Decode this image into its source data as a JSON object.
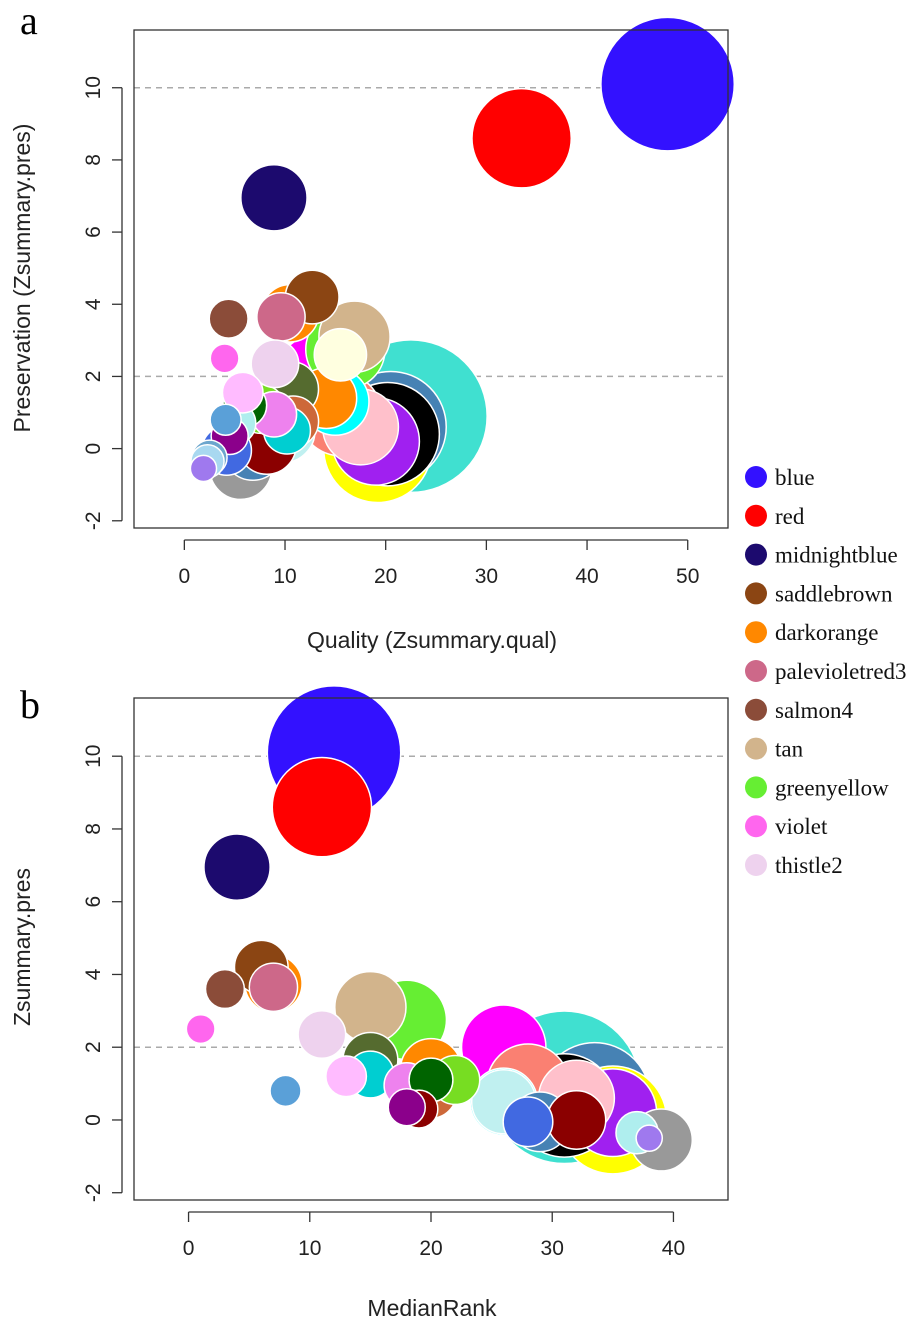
{
  "chart_data": [
    {
      "panel": "a",
      "type": "scatter",
      "xlabel": "Quality (Zsummary.qual)",
      "ylabel": "Preservation (Zsummary.pres)",
      "xticks": [
        0,
        10,
        20,
        30,
        40,
        50
      ],
      "yticks": [
        -2,
        0,
        2,
        4,
        6,
        8,
        10
      ],
      "xlim": [
        -5,
        54
      ],
      "ylim": [
        -2.2,
        11.6
      ],
      "reference_lines": [
        2,
        10
      ],
      "points": [
        {
          "module": "turquoise",
          "color": "#40E0D0",
          "x": 22.5,
          "y": 0.9,
          "size": 1700
        },
        {
          "module": "blue",
          "color": "#3311ff",
          "x": 48,
          "y": 10.1,
          "size": 1300
        },
        {
          "module": "brown",
          "color": "#4682B4",
          "x": 20.5,
          "y": 0.6,
          "size": 900
        },
        {
          "module": "yellow",
          "color": "#FFFF00",
          "x": 19.2,
          "y": 0.0,
          "size": 850
        },
        {
          "module": "black",
          "color": "#000000",
          "x": 20.2,
          "y": 0.4,
          "size": 780
        },
        {
          "module": "red",
          "color": "#ff0000",
          "x": 33.5,
          "y": 8.6,
          "size": 720
        },
        {
          "module": "purple",
          "color": "#A020F0",
          "x": 19.0,
          "y": 0.2,
          "size": 560
        },
        {
          "module": "magenta",
          "color": "#FF00FF",
          "x": 13.3,
          "y": 2.0,
          "size": 520
        },
        {
          "module": "salmon",
          "color": "#FA8072",
          "x": 15.5,
          "y": 0.95,
          "size": 500
        },
        {
          "module": "greenyellow",
          "color": "#66EE33",
          "x": 16.0,
          "y": 2.75,
          "size": 460
        },
        {
          "module": "pink",
          "color": "#FFC0CB",
          "x": 17.5,
          "y": 0.6,
          "size": 420
        },
        {
          "module": "tan",
          "color": "#D2B48C",
          "x": 16.9,
          "y": 3.1,
          "size": 370
        },
        {
          "module": "cyan",
          "color": "#00FFFF",
          "x": 15.0,
          "y": 1.3,
          "size": 330
        },
        {
          "module": "midnightblue",
          "color": "#1c0a6e",
          "x": 8.9,
          "y": 6.95,
          "size": 320
        },
        {
          "module": "lightcyan",
          "color": "#C0F0F0",
          "x": 9.8,
          "y": 0.5,
          "size": 300
        },
        {
          "module": "grey60",
          "color": "#999999",
          "x": 5.6,
          "y": -0.55,
          "size": 280
        },
        {
          "module": "darkorange",
          "color": "#FF8800",
          "x": 14.1,
          "y": 1.4,
          "size": 270
        },
        {
          "module": "steelblue",
          "color": "#4682B4",
          "x": 6.8,
          "y": -0.05,
          "size": 260
        },
        {
          "module": "darkred",
          "color": "#8B0000",
          "x": 8.2,
          "y": 0.1,
          "size": 250
        },
        {
          "module": "darkorange",
          "color": "#FF8800",
          "x": 10.5,
          "y": 3.75,
          "size": 240
        },
        {
          "module": "darkolivegreen",
          "color": "#556B2F",
          "x": 10.6,
          "y": 1.65,
          "size": 220
        },
        {
          "module": "saddlebrown",
          "color": "#8B4513",
          "x": 12.7,
          "y": 4.2,
          "size": 210
        },
        {
          "module": "lightyellow",
          "color": "#FFFFE0",
          "x": 15.5,
          "y": 2.6,
          "size": 200
        },
        {
          "module": "sienna3",
          "color": "#CD6839",
          "x": 10.8,
          "y": 0.75,
          "size": 190
        },
        {
          "module": "royalblue",
          "color": "#4169E1",
          "x": 4.2,
          "y": -0.05,
          "size": 180
        },
        {
          "module": "greenyellow",
          "color": "#77DD22",
          "x": 7.6,
          "y": 1.1,
          "size": 175
        },
        {
          "module": "palevioletred3",
          "color": "#CD6889",
          "x": 9.6,
          "y": 3.65,
          "size": 170
        },
        {
          "module": "thistle2",
          "color": "#EED2EE",
          "x": 9.0,
          "y": 2.35,
          "size": 165
        },
        {
          "module": "darkturquoise",
          "color": "#00CED1",
          "x": 10.2,
          "y": 0.5,
          "size": 160
        },
        {
          "module": "violet",
          "color": "#EE82EE",
          "x": 8.9,
          "y": 0.95,
          "size": 150
        },
        {
          "module": "darkgreen",
          "color": "#006400",
          "x": 6.0,
          "y": 1.2,
          "size": 140
        },
        {
          "module": "paleturquoise",
          "color": "#AFEEEE",
          "x": 5.0,
          "y": 0.7,
          "size": 130
        },
        {
          "module": "plum1",
          "color": "#FFBBFF",
          "x": 5.8,
          "y": 1.55,
          "size": 120
        },
        {
          "module": "salmon4",
          "color": "#8B4C39",
          "x": 4.4,
          "y": 3.6,
          "size": 110
        },
        {
          "module": "darkmagenta",
          "color": "#8B008B",
          "x": 4.5,
          "y": 0.35,
          "size": 100
        },
        {
          "module": "skyblue3",
          "color": "#6CA6CD",
          "x": 2.5,
          "y": -0.25,
          "size": 90
        },
        {
          "module": "lightsteelblue1",
          "color": "#A8D8F0",
          "x": 2.3,
          "y": -0.35,
          "size": 80
        },
        {
          "module": "skyblue",
          "color": "#5AA0D8",
          "x": 4.1,
          "y": 0.8,
          "size": 70
        },
        {
          "module": "violet",
          "color": "#FF66EE",
          "x": 4.0,
          "y": 2.5,
          "size": 60
        },
        {
          "module": "mediumpurple3",
          "color": "#9F79EE",
          "x": 1.9,
          "y": -0.55,
          "size": 50
        }
      ]
    },
    {
      "panel": "b",
      "type": "scatter",
      "xlabel": "MedianRank",
      "ylabel": "Zsummary.pres",
      "xticks": [
        0,
        10,
        20,
        30,
        40
      ],
      "yticks": [
        -2,
        0,
        2,
        4,
        6,
        8,
        10
      ],
      "xlim": [
        -4.5,
        44.5
      ],
      "ylim": [
        -2.2,
        11.6
      ],
      "reference_lines": [
        2,
        10
      ],
      "points": [
        {
          "module": "turquoise",
          "color": "#40E0D0",
          "x": 31,
          "y": 0.9,
          "size": 1700
        },
        {
          "module": "blue",
          "color": "#3311ff",
          "x": 12,
          "y": 10.1,
          "size": 1300
        },
        {
          "module": "brown",
          "color": "#4682B4",
          "x": 33.5,
          "y": 0.6,
          "size": 900
        },
        {
          "module": "yellow",
          "color": "#FFFF00",
          "x": 35,
          "y": 0.0,
          "size": 850
        },
        {
          "module": "black",
          "color": "#000000",
          "x": 31,
          "y": 0.4,
          "size": 780
        },
        {
          "module": "red",
          "color": "#ff0000",
          "x": 11,
          "y": 8.6,
          "size": 720
        },
        {
          "module": "purple",
          "color": "#A020F0",
          "x": 35,
          "y": 0.2,
          "size": 560
        },
        {
          "module": "magenta",
          "color": "#FF00FF",
          "x": 26,
          "y": 2.0,
          "size": 520
        },
        {
          "module": "salmon",
          "color": "#FA8072",
          "x": 28,
          "y": 0.95,
          "size": 500
        },
        {
          "module": "greenyellow",
          "color": "#66EE33",
          "x": 18,
          "y": 2.75,
          "size": 460
        },
        {
          "module": "pink",
          "color": "#FFC0CB",
          "x": 32,
          "y": 0.6,
          "size": 420
        },
        {
          "module": "tan",
          "color": "#D2B48C",
          "x": 15,
          "y": 3.1,
          "size": 370
        },
        {
          "module": "cyan",
          "color": "#00FFFF",
          "x": 26,
          "y": 0.5,
          "size": 330
        },
        {
          "module": "midnightblue",
          "color": "#1c0a6e",
          "x": 4,
          "y": 6.95,
          "size": 320
        },
        {
          "module": "lightcyan",
          "color": "#C0F0F0",
          "x": 26,
          "y": 0.5,
          "size": 300
        },
        {
          "module": "grey60",
          "color": "#999999",
          "x": 39,
          "y": -0.55,
          "size": 280
        },
        {
          "module": "darkorange",
          "color": "#FF8800",
          "x": 20,
          "y": 1.4,
          "size": 270
        },
        {
          "module": "steelblue",
          "color": "#4682B4",
          "x": 29,
          "y": -0.05,
          "size": 260
        },
        {
          "module": "darkred",
          "color": "#8B0000",
          "x": 32,
          "y": 0.0,
          "size": 250
        },
        {
          "module": "darkorange",
          "color": "#FF8800",
          "x": 7,
          "y": 3.75,
          "size": 240
        },
        {
          "module": "darkolivegreen",
          "color": "#556B2F",
          "x": 15,
          "y": 1.65,
          "size": 220
        },
        {
          "module": "saddlebrown",
          "color": "#8B4513",
          "x": 6,
          "y": 4.2,
          "size": 210
        },
        {
          "module": "sienna3",
          "color": "#CD6839",
          "x": 20,
          "y": 0.75,
          "size": 190
        },
        {
          "module": "royalblue",
          "color": "#4169E1",
          "x": 28,
          "y": -0.05,
          "size": 180
        },
        {
          "module": "greenyellow",
          "color": "#77DD22",
          "x": 22,
          "y": 1.1,
          "size": 175
        },
        {
          "module": "palevioletred3",
          "color": "#CD6889",
          "x": 7,
          "y": 3.65,
          "size": 170
        },
        {
          "module": "thistle2",
          "color": "#EED2EE",
          "x": 11,
          "y": 2.35,
          "size": 165
        },
        {
          "module": "darkturquoise",
          "color": "#00CED1",
          "x": 15,
          "y": 1.25,
          "size": 160
        },
        {
          "module": "violet",
          "color": "#EE82EE",
          "x": 18,
          "y": 0.95,
          "size": 150
        },
        {
          "module": "darkgreen",
          "color": "#006400",
          "x": 20,
          "y": 1.1,
          "size": 140
        },
        {
          "module": "paleturquoise",
          "color": "#AFEEEE",
          "x": 37,
          "y": -0.35,
          "size": 130
        },
        {
          "module": "plum1",
          "color": "#FFBBFF",
          "x": 13,
          "y": 1.2,
          "size": 120
        },
        {
          "module": "salmon4",
          "color": "#8B4C39",
          "x": 3,
          "y": 3.6,
          "size": 110
        },
        {
          "module": "darkred",
          "color": "#8B0000",
          "x": 19,
          "y": 0.3,
          "size": 105
        },
        {
          "module": "darkmagenta",
          "color": "#8B008B",
          "x": 18,
          "y": 0.35,
          "size": 100
        },
        {
          "module": "skyblue",
          "color": "#5AA0D8",
          "x": 8,
          "y": 0.8,
          "size": 70
        },
        {
          "module": "violet",
          "color": "#FF66EE",
          "x": 1,
          "y": 2.5,
          "size": 60
        },
        {
          "module": "mediumpurple3",
          "color": "#9F79EE",
          "x": 38,
          "y": -0.5,
          "size": 50
        }
      ]
    }
  ],
  "legend": {
    "items": [
      {
        "label": "blue",
        "color": "#3311ff"
      },
      {
        "label": "red",
        "color": "#ff0000"
      },
      {
        "label": "midnightblue",
        "color": "#1c0a6e"
      },
      {
        "label": "saddlebrown",
        "color": "#8B4513"
      },
      {
        "label": "darkorange",
        "color": "#FF8800"
      },
      {
        "label": "palevioletred3",
        "color": "#CD6889"
      },
      {
        "label": "salmon4",
        "color": "#8B4C39"
      },
      {
        "label": "tan",
        "color": "#D2B48C"
      },
      {
        "label": "greenyellow",
        "color": "#66EE33"
      },
      {
        "label": "violet",
        "color": "#FF66EE"
      },
      {
        "label": "thistle2",
        "color": "#EED2EE"
      }
    ]
  }
}
